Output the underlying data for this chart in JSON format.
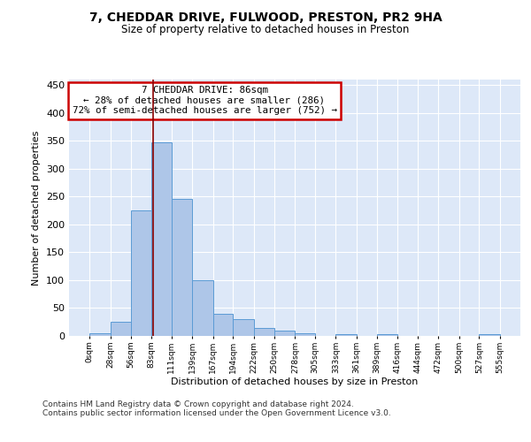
{
  "title1": "7, CHEDDAR DRIVE, FULWOOD, PRESTON, PR2 9HA",
  "title2": "Size of property relative to detached houses in Preston",
  "xlabel": "Distribution of detached houses by size in Preston",
  "ylabel": "Number of detached properties",
  "annotation_line1": "7 CHEDDAR DRIVE: 86sqm",
  "annotation_line2": "← 28% of detached houses are smaller (286)",
  "annotation_line3": "72% of semi-detached houses are larger (752) →",
  "property_size": 86,
  "bin_edges": [
    0,
    28,
    56,
    83,
    111,
    139,
    167,
    194,
    222,
    250,
    278,
    305,
    333,
    361,
    389,
    416,
    444,
    472,
    500,
    527,
    555
  ],
  "bar_heights": [
    4,
    26,
    226,
    347,
    246,
    100,
    40,
    30,
    15,
    10,
    5,
    0,
    3,
    0,
    3,
    0,
    0,
    0,
    0,
    3
  ],
  "bar_color": "#aec6e8",
  "bar_edge_color": "#5b9bd5",
  "marker_color": "#8b0000",
  "background_color": "#dde8f8",
  "annotation_box_color": "#ffffff",
  "annotation_box_edge": "#cc0000",
  "footer1": "Contains HM Land Registry data © Crown copyright and database right 2024.",
  "footer2": "Contains public sector information licensed under the Open Government Licence v3.0.",
  "ylim": [
    0,
    460
  ],
  "yticks": [
    0,
    50,
    100,
    150,
    200,
    250,
    300,
    350,
    400,
    450
  ]
}
